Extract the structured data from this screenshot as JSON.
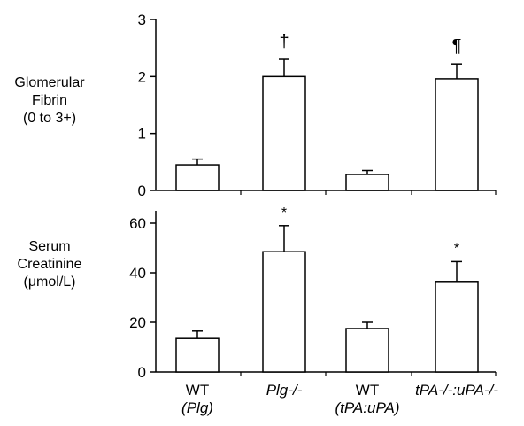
{
  "chart_data": [
    {
      "type": "bar",
      "ylabel": [
        "Glomerular",
        "Fibrin",
        "(0 to 3+)"
      ],
      "ylim": [
        0,
        3
      ],
      "yticks": [
        0,
        1,
        2,
        3
      ],
      "categories": [
        "WT (Plg)",
        "Plg-/-",
        "WT (tPA:uPA)",
        "tPA-/-:uPA-/-"
      ],
      "values": [
        0.45,
        2.0,
        0.28,
        1.96
      ],
      "errors": [
        0.1,
        0.3,
        0.07,
        0.26
      ],
      "annotations": [
        "",
        "†",
        "",
        "¶"
      ]
    },
    {
      "type": "bar",
      "ylabel": [
        "Serum",
        "Creatinine",
        "(μmol/L)"
      ],
      "ylim": [
        0,
        65
      ],
      "yticks": [
        0,
        20,
        40,
        60
      ],
      "categories": [
        "WT (Plg)",
        "Plg-/-",
        "WT (tPA:uPA)",
        "tPA-/-:uPA-/-"
      ],
      "values": [
        13.5,
        48.5,
        17.5,
        36.5
      ],
      "errors": [
        3.0,
        10.5,
        2.5,
        8.0
      ],
      "annotations": [
        "",
        "*",
        "",
        "*"
      ]
    }
  ],
  "x_labels": [
    {
      "line1": "WT",
      "line2": "(Plg)"
    },
    {
      "line1": "Plg-/-",
      "line2": ""
    },
    {
      "line1": "WT",
      "line2": "(tPA:uPA)"
    },
    {
      "line1": "tPA-/-:uPA-/-",
      "line2": ""
    }
  ]
}
